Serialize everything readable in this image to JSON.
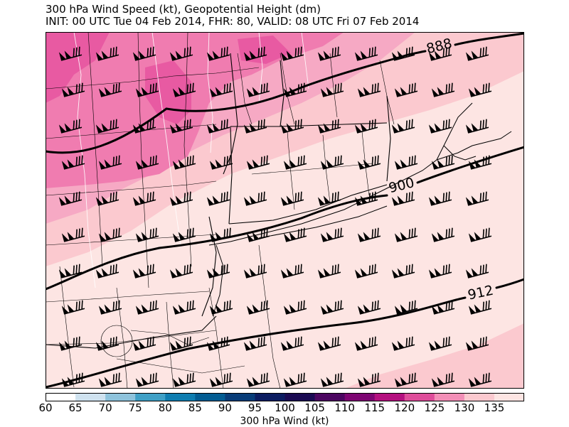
{
  "title": {
    "line1": "300 hPa Wind Speed (kt), Geopotential Height (dm)",
    "line2": "INIT: 00 UTC Tue 04 Feb 2014, FHR: 80, VALID: 08 UTC Fri 07 Feb 2014"
  },
  "contours": [
    {
      "label": "888",
      "level_dm": 888
    },
    {
      "label": "900",
      "level_dm": 900
    },
    {
      "label": "912",
      "level_dm": 912
    }
  ],
  "colorbar": {
    "label": "300 hPa Wind (kt)",
    "ticks": [
      "60",
      "65",
      "70",
      "75",
      "80",
      "85",
      "90",
      "95",
      "100",
      "105",
      "110",
      "115",
      "120",
      "125",
      "130",
      "135"
    ],
    "colors": [
      "#ffffff",
      "#cfe2ef",
      "#8ec3dc",
      "#3fa0c6",
      "#0e7db0",
      "#025c92",
      "#073c78",
      "#0b1c60",
      "#1a0a52",
      "#4b0660",
      "#7d0572",
      "#b4107f",
      "#de4d9a",
      "#f28fb7",
      "#fbc9cf",
      "#fde5e3"
    ]
  },
  "wind_field": {
    "barb_direction": "from west-southwest",
    "typical_speed_kt": 115
  }
}
